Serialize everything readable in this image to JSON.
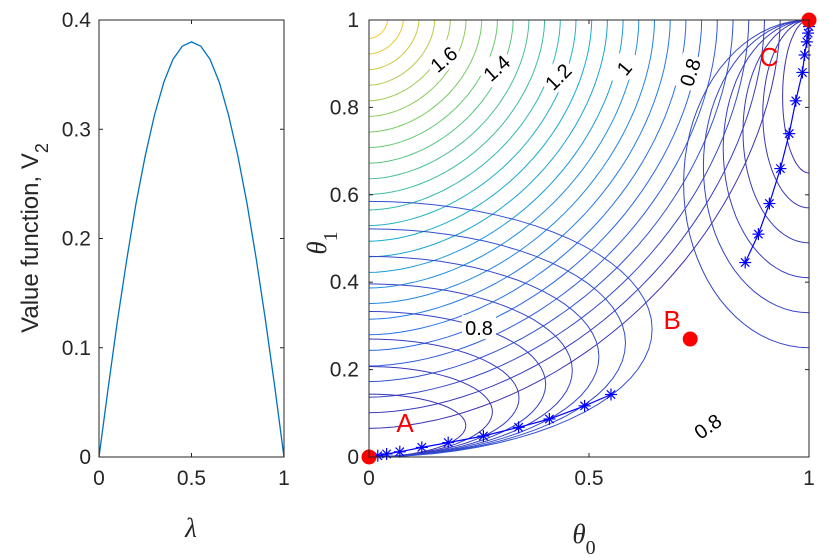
{
  "chart_data": [
    {
      "type": "line",
      "xlabel": "λ",
      "ylabel": "Value function, V",
      "ylabel_subscript": "2",
      "xlim": [
        0,
        1
      ],
      "ylim": [
        0,
        0.4
      ],
      "x_ticks": [
        "0",
        "0.5",
        "1"
      ],
      "y_ticks": [
        "0",
        "0.1",
        "0.2",
        "0.3",
        "0.4"
      ],
      "series": [
        {
          "color": "#0072bd",
          "x": [
            0,
            0.05,
            0.1,
            0.15,
            0.2,
            0.25,
            0.3,
            0.35,
            0.4,
            0.45,
            0.5,
            0.55,
            0.6,
            0.65,
            0.7,
            0.75,
            0.8,
            0.85,
            0.9,
            0.95,
            1
          ],
          "y": [
            0,
            0.064,
            0.125,
            0.181,
            0.232,
            0.276,
            0.313,
            0.343,
            0.364,
            0.376,
            0.38,
            0.376,
            0.364,
            0.343,
            0.313,
            0.276,
            0.232,
            0.181,
            0.125,
            0.064,
            0
          ]
        }
      ]
    },
    {
      "type": "contour",
      "xlabel": "θ",
      "xlabel_subscript": "0",
      "ylabel": "θ",
      "ylabel_subscript": "1",
      "xlim": [
        0,
        1
      ],
      "ylim": [
        0,
        1
      ],
      "x_ticks": [
        "0",
        "0.5",
        "1"
      ],
      "y_ticks": [
        "0",
        "0.2",
        "0.4",
        "0.6",
        "0.8",
        "1"
      ],
      "contour_labels": [
        {
          "text": "1.6",
          "x": 0.17,
          "y": 0.91,
          "angle": -40
        },
        {
          "text": "1.4",
          "x": 0.29,
          "y": 0.89,
          "angle": -42
        },
        {
          "text": "1.2",
          "x": 0.43,
          "y": 0.87,
          "angle": -45
        },
        {
          "text": "1",
          "x": 0.58,
          "y": 0.89,
          "angle": -50
        },
        {
          "text": "0.8",
          "x": 0.73,
          "y": 0.88,
          "angle": -72
        },
        {
          "text": "0.8",
          "x": 0.25,
          "y": 0.295,
          "angle": 0
        },
        {
          "text": "0.8",
          "x": 0.77,
          "y": 0.07,
          "angle": -35
        }
      ],
      "points": [
        {
          "label": "A",
          "x": 0.0,
          "y": 0.0
        },
        {
          "label": "B",
          "x": 0.73,
          "y": 0.27
        },
        {
          "label": "C",
          "x": 1.0,
          "y": 1.0
        }
      ],
      "trajectories": [
        {
          "name": "A",
          "x": [
            0.0,
            0.02,
            0.04,
            0.07,
            0.12,
            0.18,
            0.26,
            0.34,
            0.41,
            0.49,
            0.55
          ],
          "y": [
            0.0,
            0.003,
            0.007,
            0.012,
            0.022,
            0.033,
            0.048,
            0.068,
            0.087,
            0.117,
            0.143
          ]
        },
        {
          "name": "C",
          "x": [
            0.855,
            0.885,
            0.91,
            0.935,
            0.955,
            0.97,
            0.985,
            0.99,
            0.995,
            0.998,
            1.0,
            1.0
          ],
          "y": [
            0.445,
            0.51,
            0.58,
            0.66,
            0.74,
            0.815,
            0.88,
            0.92,
            0.95,
            0.97,
            0.985,
            1.0
          ]
        }
      ]
    }
  ]
}
